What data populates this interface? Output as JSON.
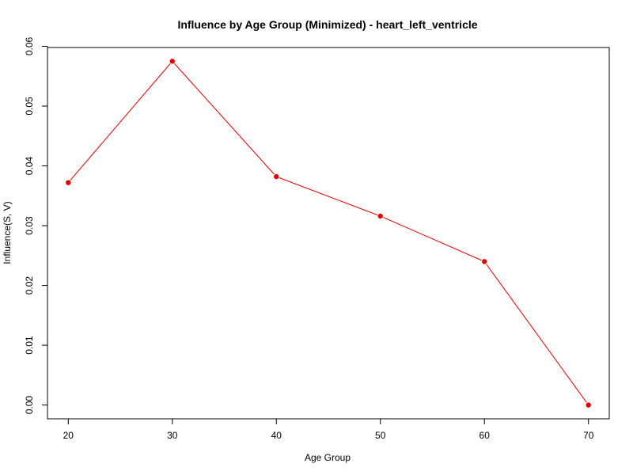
{
  "chart_data": {
    "type": "line",
    "title": "Influence by Age Group (Minimized) - heart_left_ventricle",
    "xlabel": "Age Group",
    "ylabel": "Influence(S, V)",
    "x": [
      20,
      30,
      40,
      50,
      60,
      70
    ],
    "series": [
      {
        "values": [
          0.0372,
          0.0575,
          0.0382,
          0.0316,
          0.024,
          0.0
        ],
        "color": "#e00000"
      }
    ],
    "xlim": [
      18,
      72
    ],
    "ylim": [
      -0.0023,
      0.0598
    ],
    "x_ticks": [
      "20",
      "30",
      "40",
      "50",
      "60",
      "70"
    ],
    "y_ticks": [
      "0.00",
      "0.01",
      "0.02",
      "0.03",
      "0.04",
      "0.05",
      "0.06"
    ],
    "grid": false,
    "legend": "none"
  }
}
